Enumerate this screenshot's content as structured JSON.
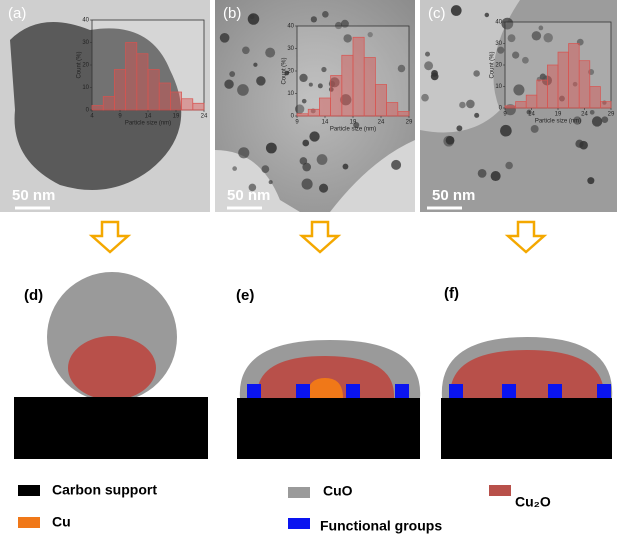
{
  "chart_data": [
    {
      "type": "histogram",
      "panel": "(a)",
      "scale_bar": "50 nm",
      "x_label": "Particle size (nm)",
      "y_label": "Count (%)",
      "bins": [
        4,
        6,
        8,
        10,
        12,
        14,
        16,
        18,
        20,
        22,
        24
      ],
      "values": [
        2,
        6,
        18,
        30,
        25,
        18,
        12,
        8,
        5,
        3
      ],
      "xlim": [
        4,
        24
      ],
      "xticks": [
        4,
        9,
        14,
        19,
        24
      ],
      "ylim": [
        0,
        40
      ],
      "yticks": [
        0,
        10,
        20,
        30,
        40
      ],
      "color": "#d9534f"
    },
    {
      "type": "histogram",
      "panel": "(b)",
      "scale_bar": "50 nm",
      "x_label": "Particle size (nm)",
      "y_label": "Count (%)",
      "bins": [
        9,
        11,
        13,
        15,
        17,
        19,
        21,
        23,
        25,
        27,
        29
      ],
      "values": [
        1,
        3,
        8,
        18,
        27,
        35,
        26,
        14,
        6,
        2
      ],
      "xlim": [
        9,
        29
      ],
      "xticks": [
        9,
        14,
        19,
        24,
        29
      ],
      "ylim": [
        0,
        40
      ],
      "yticks": [
        0,
        10,
        20,
        30,
        40
      ],
      "color": "#d9534f"
    },
    {
      "type": "histogram",
      "panel": "(c)",
      "scale_bar": "50 nm",
      "x_label": "Particle size (nm)",
      "y_label": "Count (%)",
      "bins": [
        9,
        11,
        13,
        15,
        17,
        19,
        21,
        23,
        25,
        27,
        29
      ],
      "values": [
        1,
        3,
        6,
        13,
        20,
        26,
        30,
        22,
        10,
        3
      ],
      "xlim": [
        9,
        29
      ],
      "xticks": [
        9,
        14,
        19,
        24,
        29
      ],
      "ylim": [
        0,
        40
      ],
      "yticks": [
        0,
        10,
        20,
        30,
        40
      ],
      "color": "#d9534f"
    }
  ],
  "diagrams": [
    {
      "label": "(d)"
    },
    {
      "label": "(e)"
    },
    {
      "label": "(f)"
    }
  ],
  "legend": [
    {
      "label": "Carbon support",
      "color": "#000000"
    },
    {
      "label": "Cu",
      "color": "#f07818"
    },
    {
      "label": "CuO",
      "color": "#9a9a9a"
    },
    {
      "label": "Cu₂O",
      "color": "#b8504a"
    },
    {
      "label": "Functional groups",
      "color": "#0a14f0"
    }
  ]
}
